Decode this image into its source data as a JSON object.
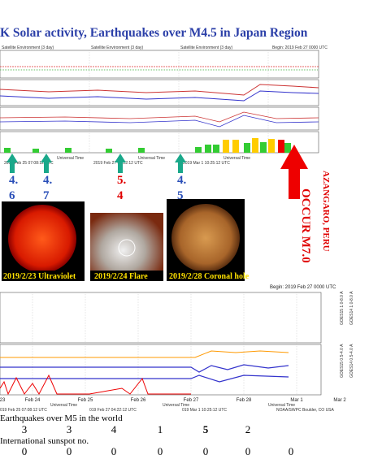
{
  "title": "K Solar activity, Earthquakes over M4.5 in Japan Region",
  "top_chart": {
    "panel_labels": [
      "Satellite Environment (3 day)",
      "Satellite Environment (3 day)",
      "Satellite Environment (3 day)"
    ],
    "begin": "Begin: 2019 Feb 27 0000 UTC",
    "axis_labels": [
      "Universal Time",
      "Universal Time",
      "Universal Time"
    ],
    "footer": [
      "2019 Feb 25 07:08:12 UTC",
      "2019 Feb 27 04:22:12 UTC",
      "2019 Mar 1 10:25:12 UTC"
    ]
  },
  "arrows": [
    {
      "top": "4.",
      "bottom": "6",
      "color": "#2a4fb8"
    },
    {
      "top": "4.",
      "bottom": "7",
      "color": "#2a4fb8"
    },
    {
      "top": "5.",
      "bottom": "4",
      "color": "#e00000"
    },
    {
      "top": "4.",
      "bottom": "5",
      "color": "#2a4fb8"
    }
  ],
  "event": {
    "place": "AZANGARO, PERU",
    "text": "OCCUR M7.0"
  },
  "photos": [
    "2019/2/23 Ultraviolet",
    "2019/2/24 Flare",
    "2019/2/28 Coronal hole"
  ],
  "bottom_chart": {
    "begin": "Begin: 2019 Feb 27 0000 UTC",
    "x_labels": [
      "23",
      "Feb 24",
      "Feb 25",
      "Feb 26",
      "Feb 27",
      "Feb 28",
      "Mar 1",
      "Mar 2"
    ],
    "axis_labels": [
      "Universal Time",
      "Universal Time",
      "Universal Time"
    ],
    "footer": [
      "019 Feb 25 07:08:12 UTC",
      "019 Feb 27 04:22:12 UTC",
      "019 Mar 1 10:25:12 UTC"
    ],
    "credit": "NOAA/SWPC Boulder, CO USA",
    "side_labels": [
      "GOES15 1.0-8.0 A",
      "GOES14 1.0-8.0 A",
      "GOES15 0.5-4.0 A",
      "GOES14 0.5-4.0 A"
    ]
  },
  "table": {
    "earthquakes_label": "Earthquakes over M5 in the world",
    "earthquakes": [
      {
        "value": "3"
      },
      {
        "value": "3"
      },
      {
        "value": "4"
      },
      {
        "value": "1"
      },
      {
        "value": "5",
        "color": "#e00000"
      },
      {
        "value": "2"
      }
    ],
    "sunspot_label": "International sunspot no.",
    "sunspots": [
      "0",
      "0",
      "0",
      "0",
      "0",
      "0",
      "0"
    ]
  }
}
